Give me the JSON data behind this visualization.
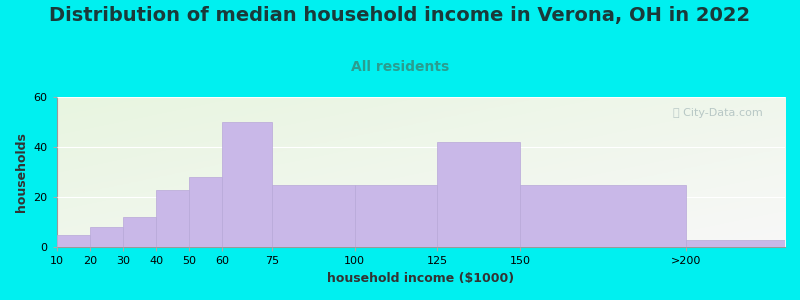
{
  "title": "Distribution of median household income in Verona, OH in 2022",
  "subtitle": "All residents",
  "xlabel": "household income ($1000)",
  "ylabel": "households",
  "bar_left_edges": [
    10,
    20,
    30,
    40,
    50,
    60,
    75,
    100,
    125,
    150,
    200
  ],
  "bar_right_edges": [
    20,
    30,
    40,
    50,
    60,
    75,
    100,
    125,
    150,
    200,
    230
  ],
  "bar_values": [
    5,
    8,
    12,
    23,
    28,
    50,
    25,
    25,
    42,
    25,
    3
  ],
  "bar_color": "#c9b8e8",
  "bar_edge_color": "#b8a8d8",
  "xlim": [
    10,
    230
  ],
  "ylim": [
    0,
    60
  ],
  "yticks": [
    0,
    20,
    40,
    60
  ],
  "xtick_positions": [
    10,
    20,
    30,
    40,
    50,
    60,
    75,
    100,
    125,
    150,
    200
  ],
  "xtick_labels": [
    "10",
    "20",
    "30",
    "40",
    "50",
    "60",
    "75",
    "100",
    "125",
    "150",
    ">200"
  ],
  "background_color": "#00f0f0",
  "plot_bg_color_tl": "#e8f5e0",
  "plot_bg_color_br": "#f8f8f8",
  "title_fontsize": 14,
  "subtitle_fontsize": 10,
  "subtitle_color": "#2a9d8f",
  "axis_label_fontsize": 9,
  "tick_fontsize": 8,
  "watermark_text": "ⓘ City-Data.com",
  "watermark_color": "#aabcbc"
}
